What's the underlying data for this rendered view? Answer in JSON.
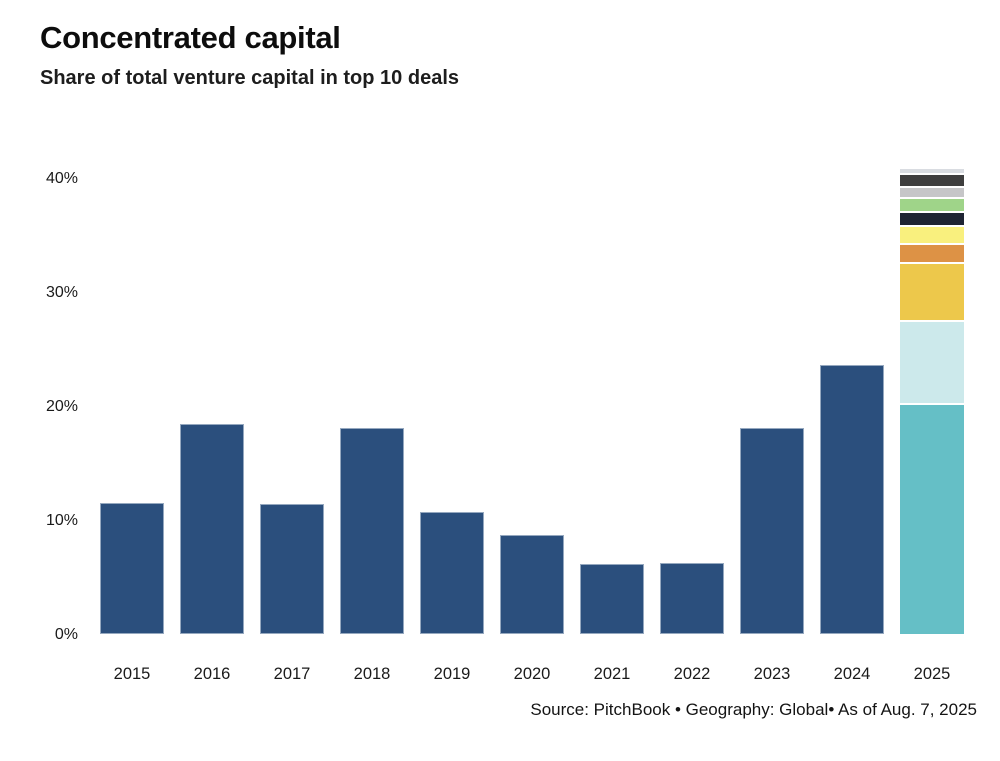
{
  "header": {
    "title": "Concentrated capital",
    "subtitle": "Share of total venture capital in top 10 deals"
  },
  "footer": {
    "source": "Source: PitchBook • Geography: Global• As of Aug. 7, 2025"
  },
  "chart_data": {
    "type": "bar",
    "title": "Concentrated capital",
    "subtitle": "Share of total venture capital in top 10 deals",
    "xlabel": "",
    "ylabel": "Share of total venture capital in top 10 deals (%)",
    "ylim": [
      0,
      40
    ],
    "grid": false,
    "legend": "none",
    "bar_color": "#2b4f7d",
    "categories": [
      "2015",
      "2016",
      "2017",
      "2018",
      "2019",
      "2020",
      "2021",
      "2022",
      "2023",
      "2024",
      "2025"
    ],
    "values": [
      11.5,
      18.4,
      11.4,
      18.1,
      10.7,
      8.7,
      6.1,
      6.2,
      18.1,
      23.6,
      41.0
    ],
    "yticks": [
      {
        "label": "0%",
        "value": 0
      },
      {
        "label": "10%",
        "value": 10
      },
      {
        "label": "20%",
        "value": 20
      },
      {
        "label": "30%",
        "value": 30
      },
      {
        "label": "40%",
        "value": 40
      }
    ],
    "note": "2025 bar is a stack of the top 10 individual deals; all other years are single solid bars",
    "stacked_2025_segments_bottom_to_top": [
      {
        "name": "deal-1",
        "value": 20.3,
        "color": "#65bfc6",
        "texture": "none"
      },
      {
        "name": "deal-2",
        "value": 7.3,
        "color": "#cce9eb",
        "texture": "none"
      },
      {
        "name": "deal-3",
        "value": 5.1,
        "color": "#edc84b",
        "texture": "none"
      },
      {
        "name": "deal-4",
        "value": 1.7,
        "color": "#dd9245",
        "texture": "none"
      },
      {
        "name": "deal-5",
        "value": 1.6,
        "color": "#f9f07e",
        "texture": "none"
      },
      {
        "name": "deal-6",
        "value": 1.2,
        "color": "#1e2433",
        "texture": "none"
      },
      {
        "name": "deal-7",
        "value": 1.2,
        "color": "#9fd489",
        "texture": "none"
      },
      {
        "name": "deal-8",
        "value": 1.0,
        "color": "#c6c6c8",
        "texture": "dots"
      },
      {
        "name": "deal-9",
        "value": 1.1,
        "color": "#3e3e3e",
        "texture": "crosshatch"
      },
      {
        "name": "deal-10",
        "value": 0.5,
        "color": "#d9dce1",
        "texture": "dots-light"
      }
    ]
  }
}
